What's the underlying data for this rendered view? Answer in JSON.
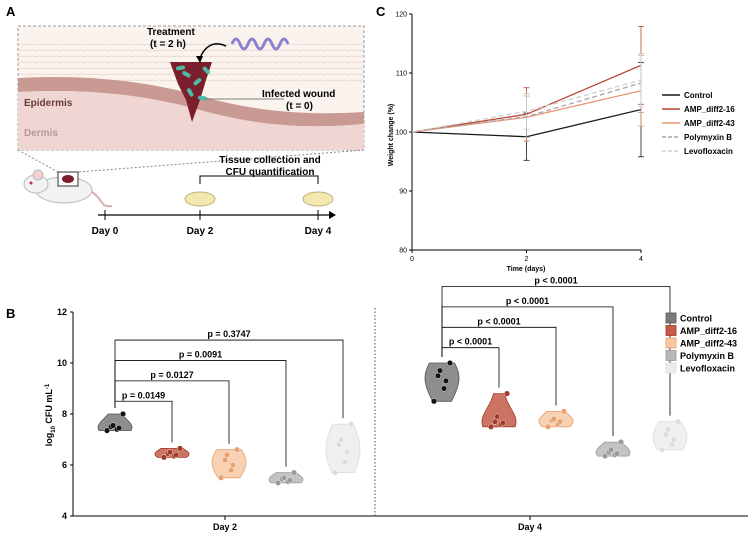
{
  "panels": {
    "a": "A",
    "b": "B",
    "c": "C"
  },
  "schematic": {
    "treatment_title": "Treatment",
    "treatment_time": "(t = 2 h)",
    "epidermis": "Epidermis",
    "dermis": "Dermis",
    "wound_title": "Infected wound",
    "wound_time": "(t = 0)",
    "collection_line1": "Tissue collection and",
    "collection_line2": "CFU quantification",
    "timeline": [
      "Day 0",
      "Day 2",
      "Day 4"
    ],
    "colors": {
      "epidermis": "#c99a93",
      "dermis": "#efd6d2",
      "wound": "#7a1f2b",
      "bacteria": "#4fb8a6",
      "peptide": "#8a82d0"
    }
  },
  "chart_data": [
    {
      "panel": "C",
      "type": "line",
      "title": "",
      "xlabel": "Time (days)",
      "ylabel": "Weight change (%)",
      "x": [
        0,
        2,
        4
      ],
      "xlim": [
        0,
        4
      ],
      "ylim": [
        80,
        120
      ],
      "xticks": [
        0,
        2,
        4
      ],
      "yticks": [
        80,
        90,
        100,
        110,
        120
      ],
      "grid": false,
      "legend_position": "right",
      "series": [
        {
          "name": "Control",
          "values": [
            100,
            99.2,
            103.8
          ],
          "err": [
            0,
            4,
            8
          ],
          "color": "#1a1a1a",
          "dash": ""
        },
        {
          "name": "AMP_diff2-16",
          "values": [
            100,
            103,
            111.3
          ],
          "err": [
            0,
            4.5,
            6.6
          ],
          "color": "#b84434",
          "dash": ""
        },
        {
          "name": "AMP_diff2-43",
          "values": [
            100,
            102.5,
            107
          ],
          "err": [
            0,
            4,
            6
          ],
          "color": "#ec9370",
          "dash": ""
        },
        {
          "name": "Polymyxin B",
          "values": [
            100,
            102.6,
            108.3
          ],
          "err": [
            0,
            3.5,
            5
          ],
          "color": "#a6a6a6",
          "dash": "5,3"
        },
        {
          "name": "Levofloxacin",
          "values": [
            100,
            103.5,
            108.8
          ],
          "err": [
            0,
            3,
            4.5
          ],
          "color": "#cfcfcf",
          "dash": "5,3"
        }
      ]
    },
    {
      "panel": "B",
      "type": "violin",
      "title": "",
      "xlabel": "",
      "ylabel": "log10 CFU mL-1",
      "ylabel_parts": {
        "pre": "log",
        "sub": "10",
        "mid": " CFU mL",
        "sup": "-1"
      },
      "ylim": [
        4,
        12
      ],
      "yticks": [
        4,
        6,
        8,
        10,
        12
      ],
      "groups": [
        "Day 2",
        "Day 4"
      ],
      "legend_position": "right",
      "series": [
        {
          "name": "Control",
          "color": "#555555",
          "fill": "#7a7a7a"
        },
        {
          "name": "AMP_diff2-16",
          "color": "#a23a2a",
          "fill": "#c45a48"
        },
        {
          "name": "AMP_diff2-43",
          "color": "#e8a06e",
          "fill": "#f7c9a6"
        },
        {
          "name": "Polymyxin B",
          "color": "#9a9a9a",
          "fill": "#b8b8b8"
        },
        {
          "name": "Levofloxacin",
          "color": "#dcdcdc",
          "fill": "#ececec"
        }
      ],
      "values": {
        "Day 2": [
          [
            7.35,
            7.4,
            7.45,
            7.5,
            7.55,
            8.0
          ],
          [
            6.3,
            6.35,
            6.4,
            6.45,
            6.5,
            6.65
          ],
          [
            5.5,
            5.8,
            6.0,
            6.2,
            6.4,
            6.6
          ],
          [
            5.3,
            5.35,
            5.4,
            5.45,
            5.5,
            5.7
          ],
          [
            5.7,
            6.1,
            6.5,
            6.8,
            7.0,
            7.6
          ]
        ],
        "Day 4": [
          [
            8.5,
            9.0,
            9.3,
            9.5,
            9.7,
            10.0
          ],
          [
            7.5,
            7.6,
            7.65,
            7.7,
            7.9,
            8.8
          ],
          [
            7.5,
            7.6,
            7.7,
            7.75,
            7.8,
            8.1
          ],
          [
            6.35,
            6.4,
            6.45,
            6.5,
            6.6,
            6.9
          ],
          [
            6.6,
            6.8,
            7.0,
            7.2,
            7.4,
            7.7
          ]
        ]
      },
      "comparisons": [
        {
          "group": "Day 2",
          "from": 0,
          "to": 1,
          "level": 8.5,
          "label": "p = 0.0149"
        },
        {
          "group": "Day 2",
          "from": 0,
          "to": 2,
          "level": 9.3,
          "label": "p = 0.0127"
        },
        {
          "group": "Day 2",
          "from": 0,
          "to": 3,
          "level": 10.1,
          "label": "p = 0.0091"
        },
        {
          "group": "Day 2",
          "from": 0,
          "to": 4,
          "level": 10.9,
          "label": "p = 0.3747"
        },
        {
          "group": "Day 4",
          "from": 0,
          "to": 1,
          "level": 10.6,
          "label": "p < 0.0001"
        },
        {
          "group": "Day 4",
          "from": 0,
          "to": 2,
          "level": 11.4,
          "label": "p < 0.0001"
        },
        {
          "group": "Day 4",
          "from": 0,
          "to": 3,
          "level": 12.2,
          "label": "p < 0.0001"
        },
        {
          "group": "Day 4",
          "from": 0,
          "to": 4,
          "level": 13.0,
          "label": "p < 0.0001"
        }
      ]
    }
  ]
}
